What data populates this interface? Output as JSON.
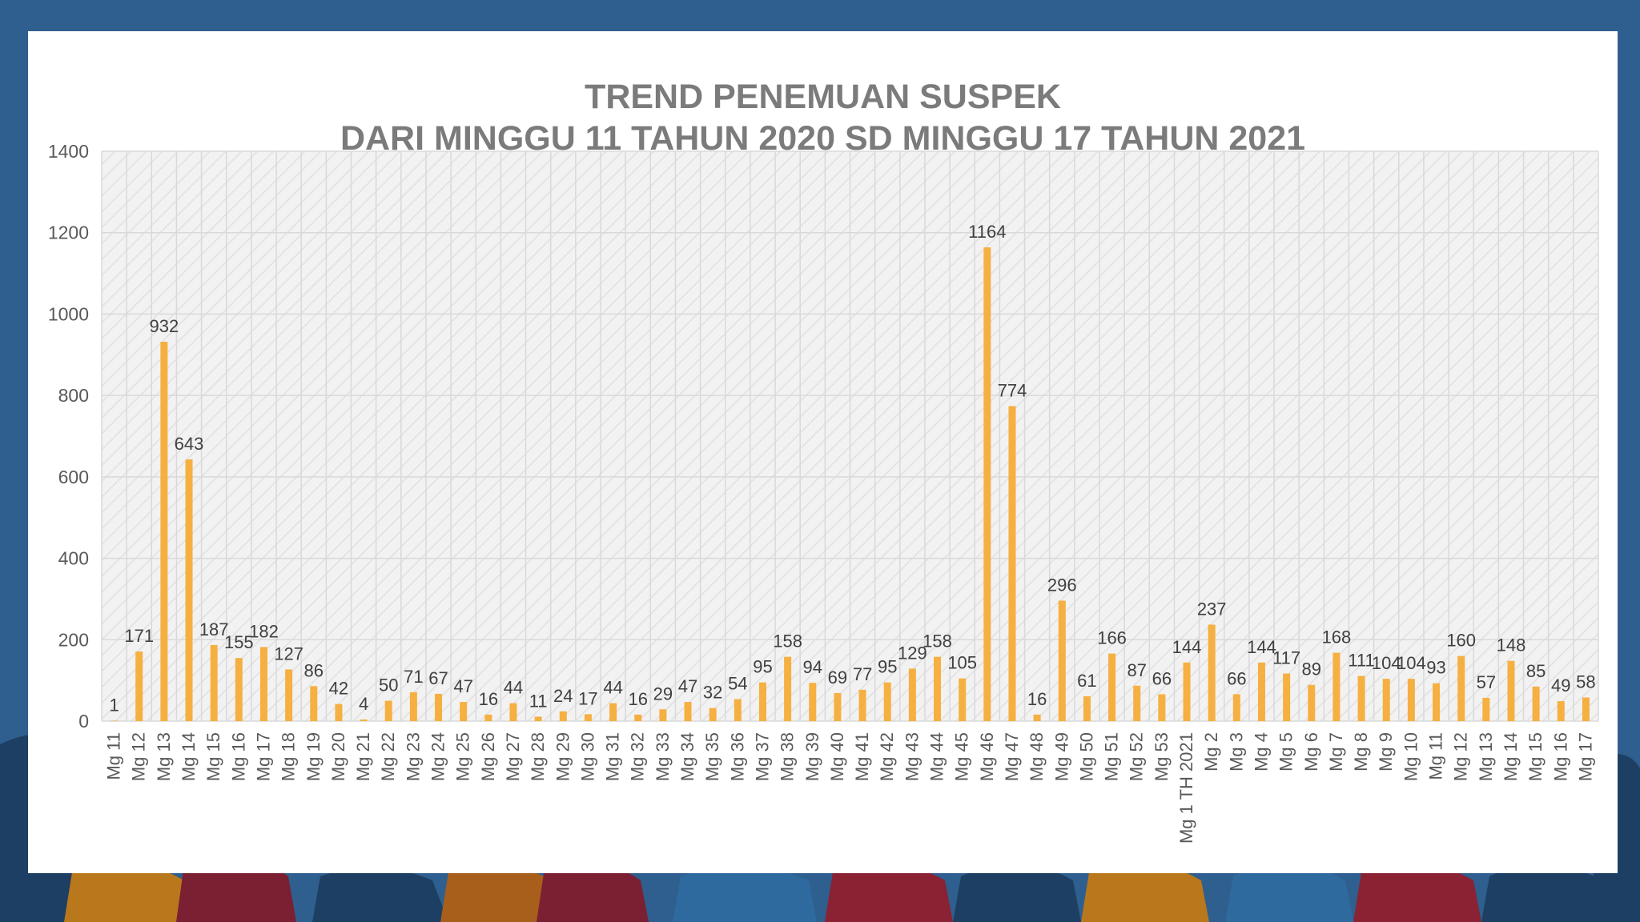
{
  "chart_data": {
    "type": "bar",
    "title": "TREND PENEMUAN SUSPEK",
    "subtitle": "DARI MINGGU 11 TAHUN 2020 SD MINGGU  17 TAHUN 2021",
    "xlabel": "",
    "ylabel": "",
    "ylim": [
      0,
      1400
    ],
    "yticks": [
      0,
      200,
      400,
      600,
      800,
      1000,
      1200,
      1400
    ],
    "grid": true,
    "legend": "none",
    "bar_color": "#f5b041",
    "categories": [
      "Mg 11",
      "Mg 12",
      "Mg 13",
      "Mg 14",
      "Mg 15",
      "Mg 16",
      "Mg 17",
      "Mg 18",
      "Mg 19",
      "Mg 20",
      "Mg 21",
      "Mg 22",
      "Mg 23",
      "Mg 24",
      "Mg 25",
      "Mg 26",
      "Mg 27",
      "Mg 28",
      "Mg 29",
      "Mg 30",
      "Mg 31",
      "Mg 32",
      "Mg 33",
      "Mg 34",
      "Mg 35",
      "Mg 36",
      "Mg 37",
      "Mg 38",
      "Mg 39",
      "Mg 40",
      "Mg 41",
      "Mg 42",
      "Mg 43",
      "Mg 44",
      "Mg 45",
      "Mg 46",
      "Mg 47",
      "Mg 48",
      "Mg 49",
      "Mg 50",
      "Mg 51",
      "Mg 52",
      "Mg 53",
      "Mg 1 TH 2021",
      "Mg 2",
      "Mg 3",
      "Mg 4",
      "Mg 5",
      "Mg 6",
      "Mg 7",
      "Mg 8",
      "Mg 9",
      "Mg 10",
      "Mg 11",
      "Mg 12",
      "Mg 13",
      "Mg 14",
      "Mg 15",
      "Mg 16",
      "Mg 17"
    ],
    "values": [
      1,
      171,
      932,
      643,
      187,
      155,
      182,
      127,
      86,
      42,
      4,
      50,
      71,
      67,
      47,
      16,
      44,
      11,
      24,
      17,
      44,
      16,
      29,
      47,
      32,
      54,
      95,
      158,
      94,
      69,
      77,
      95,
      129,
      158,
      105,
      1164,
      774,
      16,
      296,
      61,
      166,
      87,
      66,
      144,
      237,
      66,
      144,
      117,
      89,
      168,
      111,
      104,
      104,
      93,
      160,
      57,
      148,
      85,
      49,
      58
    ]
  }
}
